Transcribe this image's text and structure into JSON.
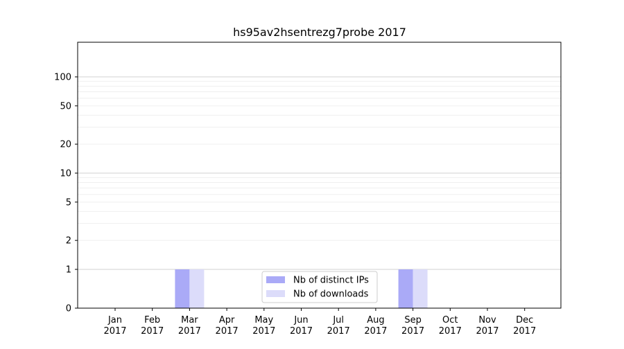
{
  "chart_data": {
    "type": "bar",
    "title": "hs95av2hsentrezg7probe 2017",
    "xlabel": "",
    "ylabel": "",
    "y_scale": "symlog",
    "y_ticks": [
      0,
      1,
      2,
      5,
      10,
      20,
      50,
      100
    ],
    "grid": true,
    "legend_position": "bottom-center",
    "categories": [
      {
        "month": "Jan",
        "year": "2017"
      },
      {
        "month": "Feb",
        "year": "2017"
      },
      {
        "month": "Mar",
        "year": "2017"
      },
      {
        "month": "Apr",
        "year": "2017"
      },
      {
        "month": "May",
        "year": "2017"
      },
      {
        "month": "Jun",
        "year": "2017"
      },
      {
        "month": "Jul",
        "year": "2017"
      },
      {
        "month": "Aug",
        "year": "2017"
      },
      {
        "month": "Sep",
        "year": "2017"
      },
      {
        "month": "Oct",
        "year": "2017"
      },
      {
        "month": "Nov",
        "year": "2017"
      },
      {
        "month": "Dec",
        "year": "2017"
      }
    ],
    "series": [
      {
        "name": "Nb of distinct IPs",
        "color": "#aaaaf7",
        "values": [
          0,
          0,
          1,
          0,
          0,
          0,
          0,
          0,
          1,
          0,
          0,
          0
        ]
      },
      {
        "name": "Nb of downloads",
        "color": "#dcdcfa",
        "values": [
          0,
          0,
          1,
          0,
          0,
          0,
          0,
          0,
          1,
          0,
          0,
          0
        ]
      }
    ]
  }
}
